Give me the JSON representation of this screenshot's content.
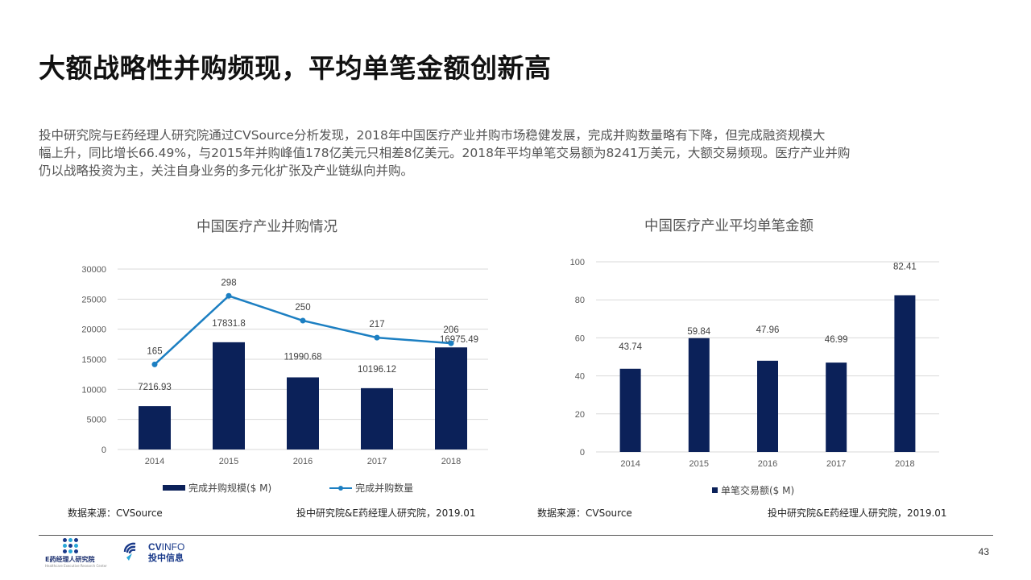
{
  "title": "大额战略性并购频现，平均单笔金额创新高",
  "description": {
    "line1": "投中研究院与E药经理人研究院通过CVSource分析发现，2018年中国医疗产业并购市场稳健发展，完成并购数量略有下降，但完成融资规模大",
    "line2": "幅上升，同比增长66.49%，与2015年并购峰值178亿美元只相差8亿美元。2018年平均单笔交易额为8241万美元，大额交易频现。医疗产业并购",
    "line3": "仍以战略投资为主，关注自身业务的多元化扩张及产业链纵向并购。"
  },
  "chart_data": [
    {
      "type": "bar+line",
      "title": "中国医疗产业并购情况",
      "categories": [
        "2014",
        "2015",
        "2016",
        "2017",
        "2018"
      ],
      "series": [
        {
          "name": "完成并购规模($ M)",
          "kind": "bar",
          "color": "#0b2159",
          "values": [
            7216.93,
            17831.8,
            11990.68,
            10196.12,
            16975.49
          ],
          "labels": [
            "7216.93",
            "17831.8",
            "11990.68",
            "10196.12",
            "16975.49"
          ]
        },
        {
          "name": "完成并购数量",
          "kind": "line",
          "color": "#1c7fc2",
          "values": [
            165,
            298,
            250,
            217,
            206
          ],
          "labels": [
            "165",
            "298",
            "250",
            "217",
            "206"
          ]
        }
      ],
      "ylim": [
        0,
        30000
      ],
      "yticks": [
        "0",
        "5000",
        "10000",
        "15000",
        "20000",
        "25000",
        "30000"
      ],
      "grid": true,
      "legend": "bottom"
    },
    {
      "type": "bar",
      "title": "中国医疗产业平均单笔金额",
      "categories": [
        "2014",
        "2015",
        "2016",
        "2017",
        "2018"
      ],
      "series": [
        {
          "name": "单笔交易额($ M)",
          "color": "#0b2159",
          "values": [
            43.74,
            59.84,
            47.96,
            46.99,
            82.41
          ],
          "labels": [
            "43.74",
            "59.84",
            "47.96",
            "46.99",
            "82.41"
          ]
        }
      ],
      "ylim": [
        0,
        100
      ],
      "yticks": [
        "0",
        "20",
        "40",
        "60",
        "80",
        "100"
      ],
      "grid": true,
      "legend": "bottom"
    }
  ],
  "footnotes": {
    "left_source": "数据来源：CVSource",
    "left_credit": "投中研究院&E药经理人研究院，2019.01",
    "right_source": "数据来源：CVSource",
    "right_credit": "投中研究院&E药经理人研究院，2019.01"
  },
  "footer": {
    "page_number": "43",
    "logo_e_name": "E药经理人研究院",
    "logo_e_sub": "Healthcare Executive Research Center",
    "logo_cv_en_a": "CV",
    "logo_cv_en_b": "INFO",
    "logo_cv_cn": "投中信息"
  },
  "colors": {
    "bar": "#0b2159",
    "line": "#1c7fc2",
    "grid": "#d9d9d9"
  }
}
